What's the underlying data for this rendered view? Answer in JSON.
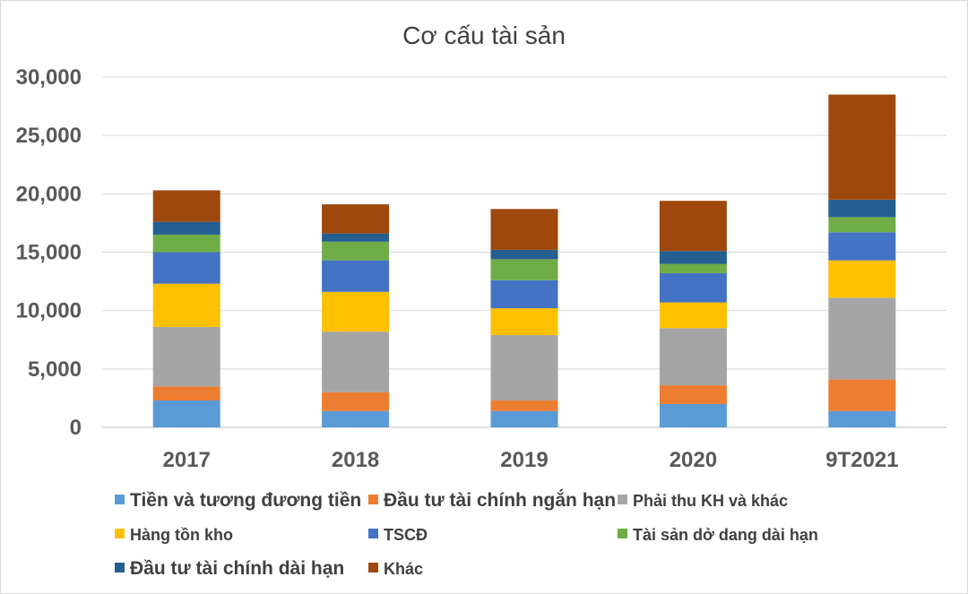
{
  "chart_data": {
    "type": "bar",
    "stacked": true,
    "title": "Cơ cấu tài sản",
    "xlabel": "",
    "ylabel": "",
    "ylim": [
      0,
      30000
    ],
    "yticks": [
      "0",
      "5,000",
      "10,000",
      "15,000",
      "20,000",
      "25,000",
      "30,000"
    ],
    "ytick_values": [
      0,
      5000,
      10000,
      15000,
      20000,
      25000,
      30000
    ],
    "grid": true,
    "legend_position": "bottom",
    "categories": [
      "2017",
      "2018",
      "2019",
      "2020",
      "9T2021"
    ],
    "series": [
      {
        "name": "Tiền và tương đương tiền",
        "color": "#5B9BD5",
        "values": [
          2300,
          1400,
          1400,
          2000,
          1400
        ]
      },
      {
        "name": "Đầu tư tài chính ngắn hạn",
        "color": "#ED7D31",
        "values": [
          1200,
          1600,
          900,
          1600,
          2700
        ]
      },
      {
        "name": "Phải thu KH và khác",
        "color": "#A5A5A5",
        "values": [
          5100,
          5200,
          5600,
          4900,
          7000
        ]
      },
      {
        "name": "Hàng tồn kho",
        "color": "#FFC000",
        "values": [
          3700,
          3400,
          2300,
          2200,
          3200
        ]
      },
      {
        "name": "TSCĐ",
        "color": "#4472C4",
        "values": [
          2700,
          2700,
          2400,
          2500,
          2400
        ]
      },
      {
        "name": "Tài sản dở dang dài hạn",
        "color": "#70AD47",
        "values": [
          1500,
          1600,
          1800,
          800,
          1300
        ]
      },
      {
        "name": "Đầu tư tài chính dài hạn",
        "color": "#255E91",
        "values": [
          1100,
          700,
          800,
          1100,
          1500
        ]
      },
      {
        "name": "Khác",
        "color": "#9E480E",
        "values": [
          2700,
          2500,
          3500,
          4300,
          9000
        ]
      }
    ]
  }
}
